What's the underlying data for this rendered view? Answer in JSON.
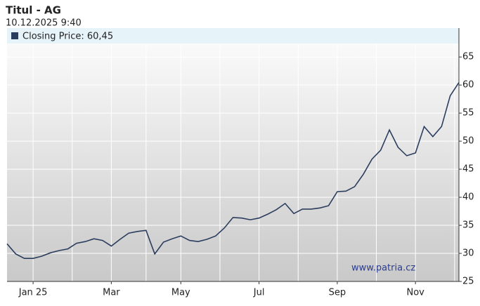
{
  "chart_data": {
    "type": "line",
    "title": "Titul - AG",
    "subtitle": "10.12.2025 9:40",
    "watermark": "www.patria.cz",
    "categories": [
      null,
      null,
      null,
      "Jan 25",
      null,
      null,
      null,
      null,
      null,
      null,
      null,
      null,
      "Mar",
      null,
      null,
      null,
      null,
      null,
      null,
      null,
      "May",
      null,
      null,
      null,
      null,
      null,
      null,
      null,
      null,
      "Jul",
      null,
      null,
      null,
      null,
      null,
      null,
      null,
      null,
      "Sep",
      null,
      null,
      null,
      null,
      null,
      null,
      null,
      null,
      "Nov",
      null,
      null,
      null,
      null,
      null
    ],
    "series": [
      {
        "name": "Closing Price: 60,45",
        "color": "#2b3d5e",
        "values": [
          31.7,
          29.9,
          29.1,
          29.1,
          29.5,
          30.1,
          30.5,
          30.8,
          31.8,
          32.1,
          32.6,
          32.3,
          31.3,
          32.5,
          33.6,
          33.9,
          34.1,
          29.9,
          32.0,
          32.6,
          33.1,
          32.3,
          32.1,
          32.5,
          33.1,
          34.5,
          36.4,
          36.3,
          36.0,
          36.3,
          37.0,
          37.8,
          38.9,
          37.1,
          37.9,
          37.9,
          38.1,
          38.5,
          41.0,
          41.1,
          41.9,
          44.1,
          46.8,
          48.4,
          52.0,
          48.9,
          47.4,
          47.9,
          52.6,
          50.8,
          52.6,
          58.1,
          60.45
        ]
      }
    ],
    "ylim": [
      25,
      67.4
    ],
    "yticks": [
      25,
      30,
      35,
      40,
      45,
      50,
      55,
      60,
      65
    ],
    "grid": true,
    "legend": "top-left"
  }
}
